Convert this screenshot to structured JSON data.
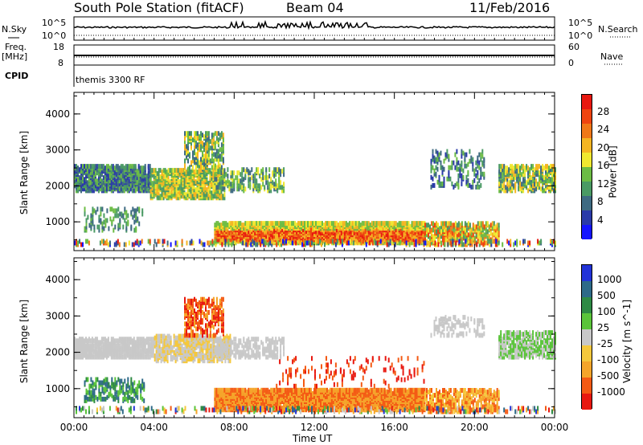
{
  "header": {
    "station": "South Pole Station (fitACF)",
    "beam": "Beam 04",
    "date": "11/Feb/2016"
  },
  "summary": {
    "nsky_label": "N.Sky",
    "nsky_top": "10^5",
    "nsky_bottom": "10^0",
    "nsearch_label": "N.Search",
    "freq_label": "Freq.",
    "freq_unit": "[MHz]",
    "freq_top": "18",
    "freq_bottom": "8",
    "nave_label": "Nave",
    "nave_top": "60",
    "nave_bottom": "0",
    "cpid_label": "CPID",
    "cpid_value": "themis 3300 RF"
  },
  "colors": {
    "power": [
      "#1414ff",
      "#2a3aa8",
      "#3e6a82",
      "#4a9a64",
      "#6cbc44",
      "#f0e830",
      "#f5b522",
      "#f07818",
      "#ee4410",
      "#e81810"
    ],
    "velocity": [
      "#e81810",
      "#f45a14",
      "#f5a52a",
      "#f5c83c",
      "#c8c8c8",
      "#5ac43a",
      "#2e8a44",
      "#2e6a88",
      "#2233d8"
    ]
  },
  "chart_data": [
    {
      "type": "heatmap",
      "panel": "power",
      "xlabel": "",
      "ylabel": "Slant Range [km]",
      "x_ticks": [
        "00:00",
        "04:00",
        "08:00",
        "12:00",
        "16:00",
        "20:00",
        "00:00"
      ],
      "y_ticks": [
        "1000",
        "2000",
        "3000",
        "4000"
      ],
      "ylim": [
        200,
        4600
      ],
      "colorbar_label": "Power [dB]",
      "colorbar_ticks": [
        "4",
        "8",
        "12",
        "16",
        "20",
        "24",
        "28"
      ],
      "colorbar_range": [
        0,
        30
      ]
    },
    {
      "type": "heatmap",
      "panel": "velocity",
      "xlabel": "Time UT",
      "ylabel": "Slant Range [km]",
      "x_ticks": [
        "00:00",
        "04:00",
        "08:00",
        "12:00",
        "16:00",
        "20:00",
        "00:00"
      ],
      "y_ticks": [
        "1000",
        "2000",
        "3000",
        "4000"
      ],
      "ylim": [
        200,
        4600
      ],
      "colorbar_label": "Velocity [m s^-1]",
      "colorbar_ticks": [
        "1000",
        "500",
        "100",
        "25",
        "-25",
        "-100",
        "-500",
        "-1000"
      ]
    }
  ]
}
